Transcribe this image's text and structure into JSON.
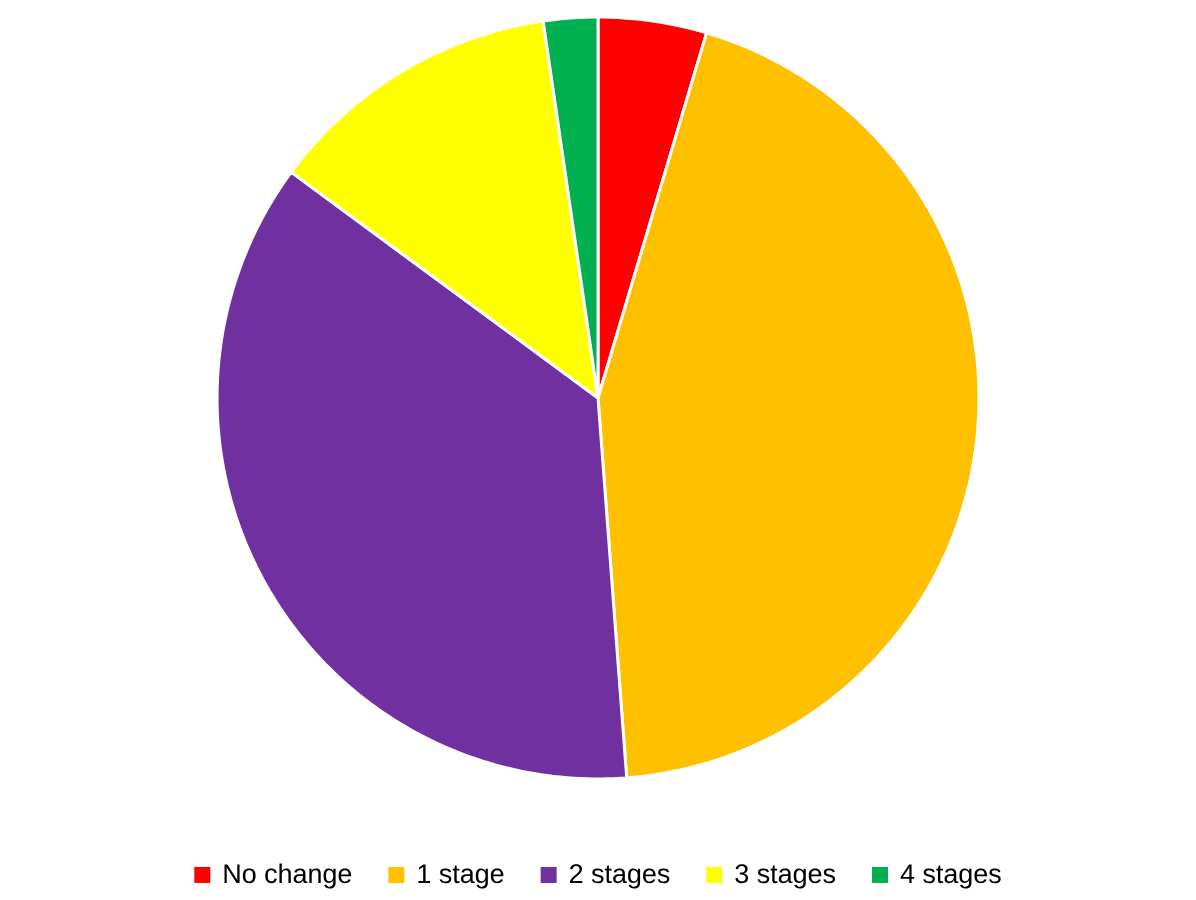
{
  "chart_data": {
    "type": "pie",
    "categories": [
      "No change",
      "1 stage",
      "2 stages",
      "3 stages",
      "4 stages"
    ],
    "values": [
      4.6,
      44.2,
      36.3,
      12.6,
      2.3
    ],
    "colors": [
      "#ff0000",
      "#ffc000",
      "#7030a0",
      "#ffff00",
      "#00b050"
    ],
    "legend": "bottom"
  }
}
